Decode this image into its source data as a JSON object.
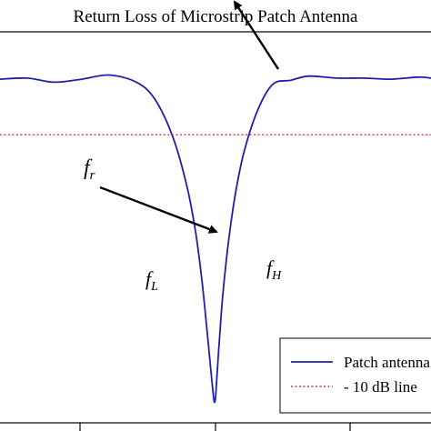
{
  "chart_data": {
    "type": "line",
    "title": "Return Loss of Microstrip Patch Antenna",
    "xlabel": "",
    "ylabel": "",
    "xlim": [
      0,
      474
    ],
    "ylim": [
      -38,
      0
    ],
    "grid": false,
    "legend_placement": "bottom-right",
    "series": [
      {
        "name": "Patch antenna",
        "style": "solid",
        "color": "#1f1fae",
        "x": [
          0,
          30,
          60,
          90,
          120,
          150,
          170,
          190,
          205,
          215,
          222,
          228,
          232,
          235,
          236,
          237,
          238,
          241,
          245,
          251,
          258,
          268,
          283,
          300,
          320,
          340,
          370,
          400,
          430,
          460,
          474
        ],
        "y": [
          -4.6,
          -4.5,
          -4.9,
          -4.6,
          -4.2,
          -4.9,
          -6.5,
          -10.2,
          -14.8,
          -19.4,
          -24.1,
          -29.3,
          -33.0,
          -35.6,
          -36.0,
          -35.6,
          -34.3,
          -30.3,
          -25.6,
          -20.6,
          -16.2,
          -11.8,
          -7.7,
          -5.1,
          -4.7,
          -4.3,
          -4.5,
          -4.5,
          -4.6,
          -4.4,
          -4.5
        ]
      },
      {
        "name": "- 10 dB line",
        "style": "dotted",
        "color": "#e0303c",
        "x": [
          0,
          474
        ],
        "y": [
          -10,
          -10
        ]
      }
    ],
    "annotations": [
      {
        "label": "f",
        "sub": "r",
        "x": 98,
        "y": -8.8
      },
      {
        "label": "f",
        "sub": "L",
        "x": 165,
        "y": -18.3
      },
      {
        "label": "f",
        "sub": "H",
        "x": 298,
        "y": -16.8
      }
    ]
  }
}
